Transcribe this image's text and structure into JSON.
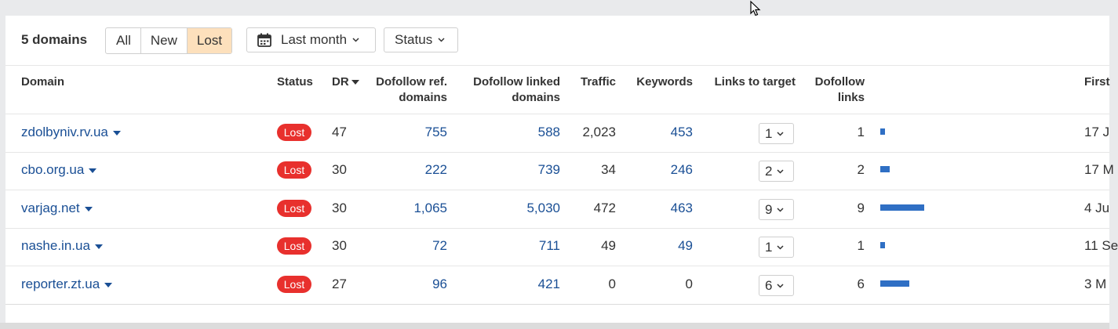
{
  "toolbar": {
    "count": "5 domains",
    "filters": [
      "All",
      "New",
      "Lost"
    ],
    "active_filter": "Lost",
    "date_label": "Last month",
    "status_label": "Status"
  },
  "columns": {
    "domain": "Domain",
    "status": "Status",
    "dr": "DR",
    "dofollow_ref_1": "Dofollow ref.",
    "dofollow_ref_2": "domains",
    "dofollow_linked_1": "Dofollow linked",
    "dofollow_linked_2": "domains",
    "traffic": "Traffic",
    "keywords": "Keywords",
    "links_to_target": "Links to target",
    "dofollow_links_1": "Dofollow",
    "dofollow_links_2": "links",
    "first": "First"
  },
  "rows": [
    {
      "domain": "zdolbyniv.rv.ua",
      "status": "Lost",
      "dr": "47",
      "ref_domains": "755",
      "linked_domains": "588",
      "traffic": "2,023",
      "keywords": "453",
      "links_to_target": "1",
      "dofollow_links": "1",
      "bar_value": 1,
      "first": "17 J"
    },
    {
      "domain": "cbo.org.ua",
      "status": "Lost",
      "dr": "30",
      "ref_domains": "222",
      "linked_domains": "739",
      "traffic": "34",
      "keywords": "246",
      "links_to_target": "2",
      "dofollow_links": "2",
      "bar_value": 2,
      "first": "17 M"
    },
    {
      "domain": "varjag.net",
      "status": "Lost",
      "dr": "30",
      "ref_domains": "1,065",
      "linked_domains": "5,030",
      "traffic": "472",
      "keywords": "463",
      "links_to_target": "9",
      "dofollow_links": "9",
      "bar_value": 9,
      "first": "4 Ju"
    },
    {
      "domain": "nashe.in.ua",
      "status": "Lost",
      "dr": "30",
      "ref_domains": "72",
      "linked_domains": "711",
      "traffic": "49",
      "keywords": "49",
      "links_to_target": "1",
      "dofollow_links": "1",
      "bar_value": 1,
      "first": "11 Se"
    },
    {
      "domain": "reporter.zt.ua",
      "status": "Lost",
      "dr": "27",
      "ref_domains": "96",
      "linked_domains": "421",
      "traffic": "0",
      "keywords": "0",
      "links_to_target": "6",
      "dofollow_links": "6",
      "bar_value": 6,
      "first": "3 M"
    }
  ],
  "colors": {
    "link": "#1a4f95",
    "lost_badge": "#e8302d",
    "active_filter_bg": "#fde0bc",
    "bar": "#2f6fc4"
  }
}
